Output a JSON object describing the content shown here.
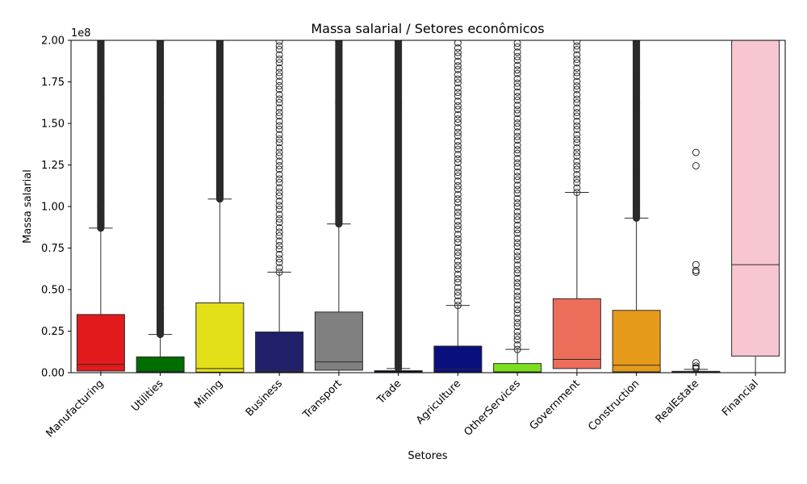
{
  "chart_data": {
    "type": "box",
    "title": "Massa salarial / Setores econômicos",
    "xlabel": "Setores",
    "ylabel": "Massa salarial",
    "y_offset_label": "1e8",
    "ylim": [
      0,
      200000000
    ],
    "yticks": [
      0,
      25000000,
      50000000,
      75000000,
      100000000,
      125000000,
      150000000,
      175000000,
      200000000
    ],
    "ytick_labels": [
      "0.00",
      "0.25",
      "0.50",
      "0.75",
      "1.00",
      "1.25",
      "1.50",
      "1.75",
      "2.00"
    ],
    "grid": false,
    "categories": [
      "Manufacturing",
      "Utilities",
      "Mining",
      "Business",
      "Transport",
      "Trade",
      "Agriculture",
      "OtherServices",
      "Government",
      "Construction",
      "RealEstate",
      "Financial"
    ],
    "colors": [
      "#e31a1c",
      "#006d00",
      "#e3e01a",
      "#20206a",
      "#808080",
      "#0a0a3a",
      "#0a0f7e",
      "#7bdf1e",
      "#ec6e5a",
      "#e69a1a",
      "#2e2e4e",
      "#f7c6d0"
    ],
    "boxes": [
      {
        "q1": 1000000,
        "median": 5000000,
        "q3": 35000000,
        "whisker_low": 0,
        "whisker_high": 87000000,
        "outlier_min": 87000000,
        "outlier_max": 200000000,
        "outlier_dense": true
      },
      {
        "q1": 200000,
        "median": 800000,
        "q3": 9500000,
        "whisker_low": 0,
        "whisker_high": 23000000,
        "outlier_min": 23000000,
        "outlier_max": 200000000,
        "outlier_dense": true
      },
      {
        "q1": 300000,
        "median": 2500000,
        "q3": 42000000,
        "whisker_low": 0,
        "whisker_high": 104500000,
        "outlier_min": 104500000,
        "outlier_max": 200000000,
        "outlier_dense": true
      },
      {
        "q1": 200000,
        "median": 1000000,
        "q3": 24500000,
        "whisker_low": 0,
        "whisker_high": 60500000,
        "outlier_min": 60500000,
        "outlier_max": 200000000,
        "outlier_dense": false
      },
      {
        "q1": 1500000,
        "median": 6500000,
        "q3": 36500000,
        "whisker_low": 0,
        "whisker_high": 89500000,
        "outlier_min": 89500000,
        "outlier_max": 200000000,
        "outlier_dense": true
      },
      {
        "q1": 100000,
        "median": 300000,
        "q3": 1200000,
        "whisker_low": 0,
        "whisker_high": 2500000,
        "outlier_min": 2500000,
        "outlier_max": 200000000,
        "outlier_dense": true
      },
      {
        "q1": 200000,
        "median": 2000000,
        "q3": 16000000,
        "whisker_low": 0,
        "whisker_high": 40500000,
        "outlier_min": 40500000,
        "outlier_max": 200000000,
        "outlier_dense": false
      },
      {
        "q1": 100000,
        "median": 500000,
        "q3": 5500000,
        "whisker_low": 0,
        "whisker_high": 14000000,
        "outlier_min": 14000000,
        "outlier_max": 200000000,
        "outlier_dense": false
      },
      {
        "q1": 2500000,
        "median": 8000000,
        "q3": 44500000,
        "whisker_low": 0,
        "whisker_high": 108500000,
        "outlier_min": 108500000,
        "outlier_max": 200000000,
        "outlier_dense": false
      },
      {
        "q1": 500000,
        "median": 4500000,
        "q3": 37500000,
        "whisker_low": 0,
        "whisker_high": 93000000,
        "outlier_min": 93000000,
        "outlier_max": 200000000,
        "outlier_dense": true
      },
      {
        "q1": 50000,
        "median": 200000,
        "q3": 800000,
        "whisker_low": 0,
        "whisker_high": 2000000,
        "outliers": [
          2500000,
          3000000,
          4000000,
          6000000,
          60500000,
          61500000,
          65000000,
          124500000,
          132500000
        ]
      },
      {
        "q1": 10000000,
        "median": 65000000,
        "q3": 210000000,
        "whisker_low": 0,
        "whisker_high": 210000000
      }
    ]
  }
}
